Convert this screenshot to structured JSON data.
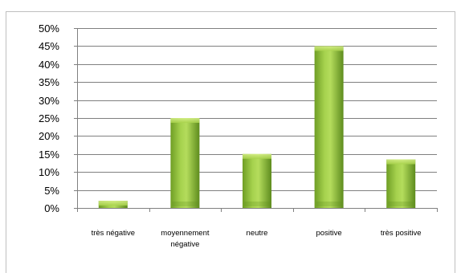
{
  "chart_data": {
    "type": "bar",
    "title": "",
    "xlabel": "",
    "ylabel": "",
    "categories": [
      [
        "très négative"
      ],
      [
        "moyennement",
        "négative"
      ],
      [
        "neutre"
      ],
      [
        "positive"
      ],
      [
        "très positive"
      ]
    ],
    "values": [
      2,
      25,
      15,
      45,
      13.5
    ],
    "ylim": [
      0,
      50
    ],
    "yticks": [
      0,
      5,
      10,
      15,
      20,
      25,
      30,
      35,
      40,
      45,
      50
    ],
    "ytick_labels": [
      "0%",
      "5%",
      "10%",
      "15%",
      "20%",
      "25%",
      "30%",
      "35%",
      "40%",
      "45%",
      "50%"
    ],
    "grid": true,
    "legend": "none",
    "colors": {
      "bar_light": "#bfe06a",
      "bar_mid": "#8fc03a",
      "bar_dark": "#5b8a1c",
      "grid": "#808080",
      "axis": "#808080"
    }
  }
}
